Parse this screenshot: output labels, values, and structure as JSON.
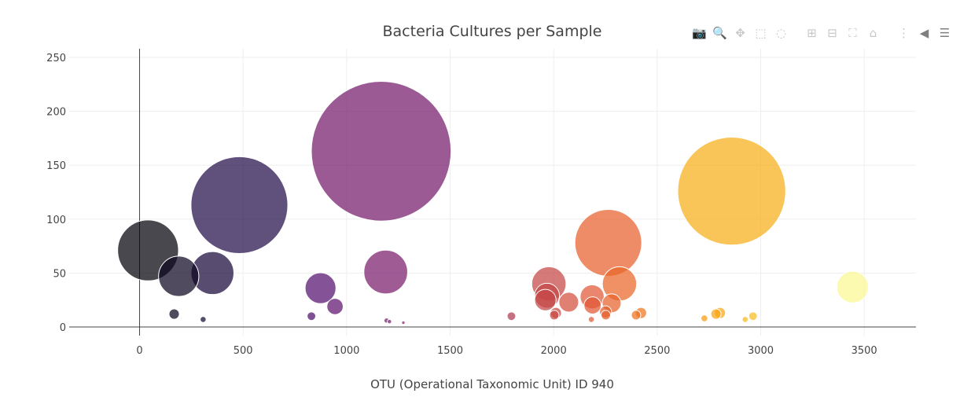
{
  "chart_data": {
    "type": "scatter",
    "title": "Bacteria Cultures per Sample",
    "xlabel": "OTU (Operational Taxonomic Unit) ID 940",
    "ylabel": "",
    "xlim": [
      -340,
      3750
    ],
    "ylim": [
      -8,
      258
    ],
    "x_ticks": [
      0,
      500,
      1000,
      1500,
      2000,
      2500,
      3000,
      3500
    ],
    "y_ticks": [
      0,
      50,
      100,
      150,
      200,
      250
    ],
    "grid": true,
    "legend": "none",
    "marker_colorscale": "Inferno",
    "size_value_is_y": true,
    "points": [
      {
        "x": 41,
        "y": 71
      },
      {
        "x": 189,
        "y": 47
      },
      {
        "x": 167,
        "y": 12
      },
      {
        "x": 352,
        "y": 50
      },
      {
        "x": 307,
        "y": 7
      },
      {
        "x": 482,
        "y": 113
      },
      {
        "x": 874,
        "y": 36
      },
      {
        "x": 944,
        "y": 19
      },
      {
        "x": 830,
        "y": 10
      },
      {
        "x": 1167,
        "y": 163
      },
      {
        "x": 1189,
        "y": 51
      },
      {
        "x": 1193,
        "y": 6
      },
      {
        "x": 1207,
        "y": 5
      },
      {
        "x": 1274,
        "y": 4
      },
      {
        "x": 1796,
        "y": 10
      },
      {
        "x": 1977,
        "y": 40
      },
      {
        "x": 1968,
        "y": 29
      },
      {
        "x": 1960,
        "y": 25
      },
      {
        "x": 2011,
        "y": 13
      },
      {
        "x": 2003,
        "y": 11
      },
      {
        "x": 2073,
        "y": 23
      },
      {
        "x": 2186,
        "y": 28
      },
      {
        "x": 2188,
        "y": 20
      },
      {
        "x": 2264,
        "y": 78
      },
      {
        "x": 2318,
        "y": 40
      },
      {
        "x": 2280,
        "y": 22
      },
      {
        "x": 2251,
        "y": 14
      },
      {
        "x": 2252,
        "y": 11
      },
      {
        "x": 2422,
        "y": 13
      },
      {
        "x": 2398,
        "y": 11
      },
      {
        "x": 2182,
        "y": 7
      },
      {
        "x": 2860,
        "y": 126
      },
      {
        "x": 2803,
        "y": 13
      },
      {
        "x": 2784,
        "y": 12
      },
      {
        "x": 2728,
        "y": 8
      },
      {
        "x": 2963,
        "y": 10
      },
      {
        "x": 2925,
        "y": 7
      },
      {
        "x": 3444,
        "y": 37
      }
    ]
  },
  "modebar": {
    "buttons": [
      {
        "icon": "camera-icon",
        "glyph": "📷"
      },
      {
        "icon": "zoom-icon",
        "glyph": "🔍"
      },
      {
        "icon": "pan-icon",
        "glyph": "✥"
      },
      {
        "icon": "box-select-icon",
        "glyph": "⬚"
      },
      {
        "icon": "lasso-select-icon",
        "glyph": "◌"
      },
      {
        "icon": "zoom-in-icon",
        "glyph": "⊞"
      },
      {
        "icon": "zoom-out-icon",
        "glyph": "⊟"
      },
      {
        "icon": "autoscale-icon",
        "glyph": "⛶"
      },
      {
        "icon": "reset-axes-icon",
        "glyph": "⌂"
      },
      {
        "icon": "spike-lines-icon",
        "glyph": "⋮"
      },
      {
        "icon": "hover-closest-icon",
        "glyph": "◀"
      },
      {
        "icon": "hover-compare-icon",
        "glyph": "☰"
      }
    ]
  }
}
